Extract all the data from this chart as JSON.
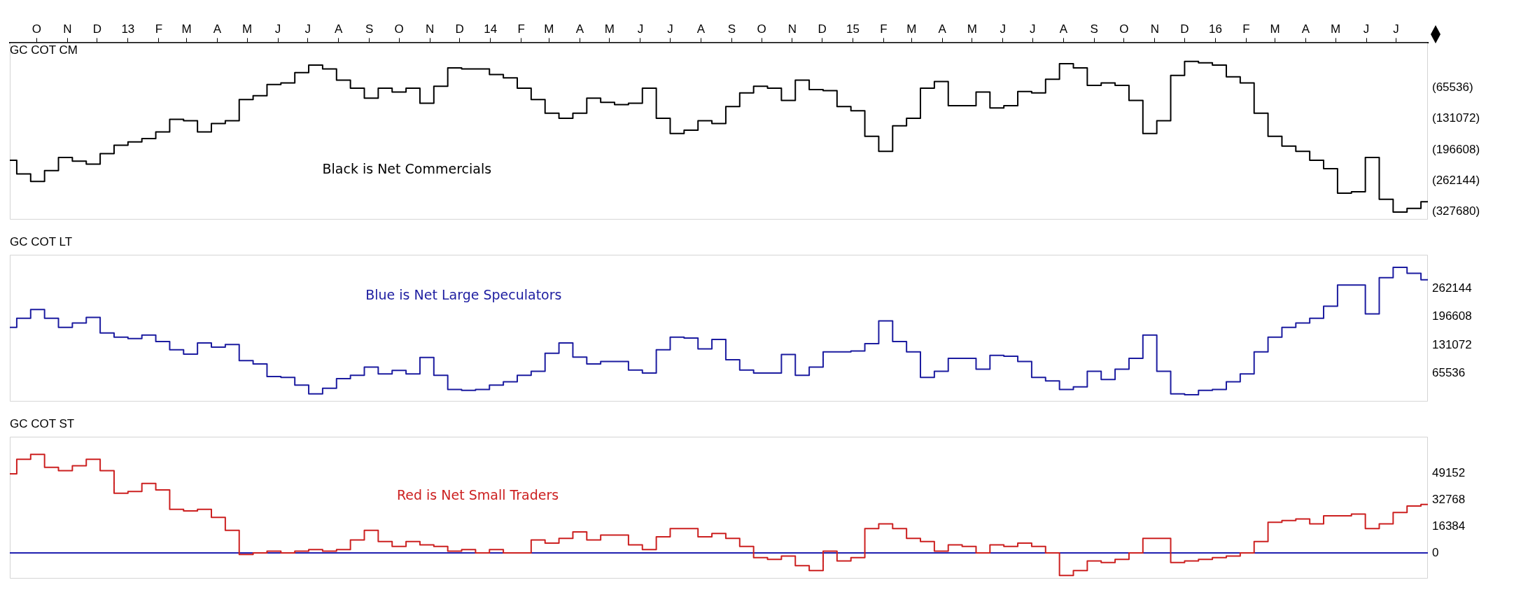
{
  "chart_data": [
    {
      "type": "step",
      "title": "GC COT CM",
      "x": [
        "2012-09-04",
        "2012-09-18",
        "2012-10-02",
        "2012-10-16",
        "2012-10-30",
        "2012-11-13",
        "2012-11-27",
        "2012-12-11",
        "2012-12-25",
        "2013-01-08",
        "2013-01-22",
        "2013-02-05",
        "2013-02-19",
        "2013-03-05",
        "2013-03-19",
        "2013-04-02",
        "2013-04-16",
        "2013-04-30",
        "2013-05-14",
        "2013-05-28",
        "2013-06-11",
        "2013-06-25",
        "2013-07-09",
        "2013-07-23",
        "2013-08-06",
        "2013-08-20",
        "2013-09-03",
        "2013-09-17",
        "2013-10-01",
        "2013-10-15",
        "2013-10-29",
        "2013-11-12",
        "2013-11-26",
        "2013-12-10",
        "2013-12-24",
        "2014-01-07",
        "2014-01-21",
        "2014-02-04",
        "2014-02-18",
        "2014-03-04",
        "2014-03-18",
        "2014-04-01",
        "2014-04-15",
        "2014-04-29",
        "2014-05-13",
        "2014-05-27",
        "2014-06-10",
        "2014-06-24",
        "2014-07-08",
        "2014-07-22",
        "2014-08-05",
        "2014-08-19",
        "2014-09-02",
        "2014-09-16",
        "2014-09-30",
        "2014-10-14",
        "2014-10-28",
        "2014-11-11",
        "2014-11-25",
        "2014-12-09",
        "2014-12-23",
        "2015-01-06",
        "2015-01-20",
        "2015-02-03",
        "2015-02-17",
        "2015-03-03",
        "2015-03-17",
        "2015-03-31",
        "2015-04-14",
        "2015-04-28",
        "2015-05-12",
        "2015-05-26",
        "2015-06-09",
        "2015-06-23",
        "2015-07-07",
        "2015-07-21",
        "2015-08-04",
        "2015-08-18",
        "2015-09-01",
        "2015-09-15",
        "2015-09-29",
        "2015-10-13",
        "2015-10-27",
        "2015-11-10",
        "2015-11-24",
        "2015-12-08",
        "2015-12-22",
        "2016-01-05",
        "2016-01-19",
        "2016-02-02",
        "2016-02-16",
        "2016-03-01",
        "2016-03-15",
        "2016-03-29",
        "2016-04-12",
        "2016-04-26",
        "2016-05-10",
        "2016-05-24",
        "2016-06-07",
        "2016-06-21",
        "2016-07-05",
        "2016-07-19",
        "2016-08-02"
      ],
      "series": [
        {
          "color": "#000000",
          "values": [
            -219000,
            -248000,
            -264000,
            -241000,
            -213000,
            -221000,
            -227000,
            -205000,
            -187000,
            -180000,
            -173000,
            -159000,
            -132000,
            -135000,
            -159000,
            -141000,
            -135000,
            -90000,
            -82000,
            -58000,
            -55000,
            -33000,
            -17000,
            -25000,
            -49000,
            -66000,
            -87000,
            -66000,
            -74000,
            -66000,
            -98000,
            -62000,
            -23000,
            -25000,
            -25000,
            -37000,
            -44000,
            -66000,
            -90000,
            -119000,
            -130000,
            -119000,
            -87000,
            -96000,
            -101000,
            -98000,
            -66000,
            -130000,
            -162000,
            -155000,
            -135000,
            -141000,
            -105000,
            -76000,
            -62000,
            -66000,
            -92000,
            -49000,
            -69000,
            -71000,
            -105000,
            -114000,
            -168000,
            -200000,
            -146000,
            -130000,
            -66000,
            -52000,
            -103000,
            -103000,
            -74000,
            -108000,
            -103000,
            -73000,
            -76000,
            -47000,
            -14000,
            -23000,
            -60000,
            -55000,
            -60000,
            -92000,
            -162000,
            -135000,
            -39000,
            -9000,
            -12000,
            -17000,
            -42000,
            -55000,
            -119000,
            -168000,
            -189000,
            -200000,
            -219000,
            -237000,
            -289000,
            -286000,
            -213000,
            -302000,
            -329000,
            -321000,
            -307000
          ]
        }
      ],
      "xlim": [
        "2012-09-04",
        "2016-08-02"
      ],
      "xticks": [
        {
          "value": "2012-10-01",
          "label": "O"
        },
        {
          "value": "2012-11-01",
          "label": "N"
        },
        {
          "value": "2012-12-01",
          "label": "D"
        },
        {
          "value": "2013-01-01",
          "label": "13"
        },
        {
          "value": "2013-02-01",
          "label": "F"
        },
        {
          "value": "2013-03-01",
          "label": "M"
        },
        {
          "value": "2013-04-01",
          "label": "A"
        },
        {
          "value": "2013-05-01",
          "label": "M"
        },
        {
          "value": "2013-06-01",
          "label": "J"
        },
        {
          "value": "2013-07-01",
          "label": "J"
        },
        {
          "value": "2013-08-01",
          "label": "A"
        },
        {
          "value": "2013-09-01",
          "label": "S"
        },
        {
          "value": "2013-10-01",
          "label": "O"
        },
        {
          "value": "2013-11-01",
          "label": "N"
        },
        {
          "value": "2013-12-01",
          "label": "D"
        },
        {
          "value": "2014-01-01",
          "label": "14"
        },
        {
          "value": "2014-02-01",
          "label": "F"
        },
        {
          "value": "2014-03-01",
          "label": "M"
        },
        {
          "value": "2014-04-01",
          "label": "A"
        },
        {
          "value": "2014-05-01",
          "label": "M"
        },
        {
          "value": "2014-06-01",
          "label": "J"
        },
        {
          "value": "2014-07-01",
          "label": "J"
        },
        {
          "value": "2014-08-01",
          "label": "A"
        },
        {
          "value": "2014-09-01",
          "label": "S"
        },
        {
          "value": "2014-10-01",
          "label": "O"
        },
        {
          "value": "2014-11-01",
          "label": "N"
        },
        {
          "value": "2014-12-01",
          "label": "D"
        },
        {
          "value": "2015-01-01",
          "label": "15"
        },
        {
          "value": "2015-02-01",
          "label": "F"
        },
        {
          "value": "2015-03-01",
          "label": "M"
        },
        {
          "value": "2015-04-01",
          "label": "A"
        },
        {
          "value": "2015-05-01",
          "label": "M"
        },
        {
          "value": "2015-06-01",
          "label": "J"
        },
        {
          "value": "2015-07-01",
          "label": "J"
        },
        {
          "value": "2015-08-01",
          "label": "A"
        },
        {
          "value": "2015-09-01",
          "label": "S"
        },
        {
          "value": "2015-10-01",
          "label": "O"
        },
        {
          "value": "2015-11-01",
          "label": "N"
        },
        {
          "value": "2015-12-01",
          "label": "D"
        },
        {
          "value": "2016-01-01",
          "label": "16"
        },
        {
          "value": "2016-02-01",
          "label": "F"
        },
        {
          "value": "2016-03-01",
          "label": "M"
        },
        {
          "value": "2016-04-01",
          "label": "A"
        },
        {
          "value": "2016-05-01",
          "label": "M"
        },
        {
          "value": "2016-06-01",
          "label": "J"
        },
        {
          "value": "2016-07-01",
          "label": "J"
        }
      ],
      "ylim": [
        -345000,
        30000
      ],
      "yticks": [
        {
          "value": -65536,
          "label": "(65536)"
        },
        {
          "value": -131072,
          "label": "(131072)"
        },
        {
          "value": -196608,
          "label": "(196608)"
        },
        {
          "value": -262144,
          "label": "(262144)"
        },
        {
          "value": -327680,
          "label": "(327680)"
        }
      ],
      "annotations": [
        "Black is Net Commercials"
      ]
    },
    {
      "type": "step",
      "title": "GC COT LT",
      "tick_labels": "y",
      "x": [
        "2012-09-04",
        "2012-09-18",
        "2012-10-02",
        "2012-10-16",
        "2012-10-30",
        "2012-11-13",
        "2012-11-27",
        "2012-12-11",
        "2012-12-25",
        "2013-01-08",
        "2013-01-22",
        "2013-02-05",
        "2013-02-19",
        "2013-03-05",
        "2013-03-19",
        "2013-04-02",
        "2013-04-16",
        "2013-04-30",
        "2013-05-14",
        "2013-05-28",
        "2013-06-11",
        "2013-06-25",
        "2013-07-09",
        "2013-07-23",
        "2013-08-06",
        "2013-08-20",
        "2013-09-03",
        "2013-09-17",
        "2013-10-01",
        "2013-10-15",
        "2013-10-29",
        "2013-11-12",
        "2013-11-26",
        "2013-12-10",
        "2013-12-24",
        "2014-01-07",
        "2014-01-21",
        "2014-02-04",
        "2014-02-18",
        "2014-03-04",
        "2014-03-18",
        "2014-04-01",
        "2014-04-15",
        "2014-04-29",
        "2014-05-13",
        "2014-05-27",
        "2014-06-10",
        "2014-06-24",
        "2014-07-08",
        "2014-07-22",
        "2014-08-05",
        "2014-08-19",
        "2014-09-02",
        "2014-09-16",
        "2014-09-30",
        "2014-10-14",
        "2014-10-28",
        "2014-11-11",
        "2014-11-25",
        "2014-12-09",
        "2014-12-23",
        "2015-01-06",
        "2015-01-20",
        "2015-02-03",
        "2015-02-17",
        "2015-03-03",
        "2015-03-17",
        "2015-03-31",
        "2015-04-14",
        "2015-04-28",
        "2015-05-12",
        "2015-05-26",
        "2015-06-09",
        "2015-06-23",
        "2015-07-07",
        "2015-07-21",
        "2015-08-04",
        "2015-08-18",
        "2015-09-01",
        "2015-09-15",
        "2015-09-29",
        "2015-10-13",
        "2015-10-27",
        "2015-11-10",
        "2015-11-24",
        "2015-12-08",
        "2015-12-22",
        "2016-01-05",
        "2016-01-19",
        "2016-02-02",
        "2016-02-16",
        "2016-03-01",
        "2016-03-15",
        "2016-03-29",
        "2016-04-12",
        "2016-04-26",
        "2016-05-10",
        "2016-05-24",
        "2016-06-07",
        "2016-06-21",
        "2016-07-05",
        "2016-07-19",
        "2016-08-02"
      ],
      "series": [
        {
          "color": "#1c1ca0",
          "values": [
            172000,
            193000,
            213000,
            193000,
            172000,
            182000,
            195000,
            159000,
            149000,
            146000,
            154000,
            139000,
            120000,
            110000,
            136000,
            126000,
            132000,
            95000,
            87000,
            58000,
            56000,
            38000,
            18000,
            31000,
            53000,
            61000,
            80000,
            64000,
            72000,
            64000,
            102000,
            61000,
            28000,
            26000,
            28000,
            38000,
            46000,
            61000,
            70000,
            112000,
            136000,
            103000,
            87000,
            93000,
            93000,
            73000,
            66000,
            120000,
            149000,
            147000,
            122000,
            144000,
            97000,
            73000,
            66000,
            66000,
            109000,
            61000,
            80000,
            115000,
            115000,
            117000,
            134000,
            187000,
            139000,
            115000,
            56000,
            70000,
            100000,
            100000,
            75000,
            107000,
            105000,
            93000,
            56000,
            48000,
            28000,
            34000,
            70000,
            51000,
            75000,
            100000,
            154000,
            70000,
            18000,
            16000,
            26000,
            28000,
            46000,
            64000,
            115000,
            149000,
            172000,
            182000,
            193000,
            221000,
            270000,
            270000,
            203000,
            287000,
            311000,
            297000,
            282000
          ]
        }
      ],
      "xlim": [
        "2012-09-04",
        "2016-08-02"
      ],
      "ylim": [
        0,
        340000
      ],
      "yticks": [
        65536,
        131072,
        196608,
        262144
      ],
      "annotations": [
        "Blue is Net Large Speculators"
      ]
    },
    {
      "type": "step",
      "title": "GC COT ST",
      "tick_labels": "y",
      "x": [
        "2012-09-04",
        "2012-09-18",
        "2012-10-02",
        "2012-10-16",
        "2012-10-30",
        "2012-11-13",
        "2012-11-27",
        "2012-12-11",
        "2012-12-25",
        "2013-01-08",
        "2013-01-22",
        "2013-02-05",
        "2013-02-19",
        "2013-03-05",
        "2013-03-19",
        "2013-04-02",
        "2013-04-16",
        "2013-04-30",
        "2013-05-14",
        "2013-05-28",
        "2013-06-11",
        "2013-06-25",
        "2013-07-09",
        "2013-07-23",
        "2013-08-06",
        "2013-08-20",
        "2013-09-03",
        "2013-09-17",
        "2013-10-01",
        "2013-10-15",
        "2013-10-29",
        "2013-11-12",
        "2013-11-26",
        "2013-12-10",
        "2013-12-24",
        "2014-01-07",
        "2014-01-21",
        "2014-02-04",
        "2014-02-18",
        "2014-03-04",
        "2014-03-18",
        "2014-04-01",
        "2014-04-15",
        "2014-04-29",
        "2014-05-13",
        "2014-05-27",
        "2014-06-10",
        "2014-06-24",
        "2014-07-08",
        "2014-07-22",
        "2014-08-05",
        "2014-08-19",
        "2014-09-02",
        "2014-09-16",
        "2014-09-30",
        "2014-10-14",
        "2014-10-28",
        "2014-11-11",
        "2014-11-25",
        "2014-12-09",
        "2014-12-23",
        "2015-01-06",
        "2015-01-20",
        "2015-02-03",
        "2015-02-17",
        "2015-03-03",
        "2015-03-17",
        "2015-03-31",
        "2015-04-14",
        "2015-04-28",
        "2015-05-12",
        "2015-05-26",
        "2015-06-09",
        "2015-06-23",
        "2015-07-07",
        "2015-07-21",
        "2015-08-04",
        "2015-08-18",
        "2015-09-01",
        "2015-09-15",
        "2015-09-29",
        "2015-10-13",
        "2015-10-27",
        "2015-11-10",
        "2015-11-24",
        "2015-12-08",
        "2015-12-22",
        "2016-01-05",
        "2016-01-19",
        "2016-02-02",
        "2016-02-16",
        "2016-03-01",
        "2016-03-15",
        "2016-03-29",
        "2016-04-12",
        "2016-04-26",
        "2016-05-10",
        "2016-05-24",
        "2016-06-07",
        "2016-06-21",
        "2016-07-05",
        "2016-07-19",
        "2016-08-02"
      ],
      "series": [
        {
          "color": "#cc2020",
          "values": [
            49000,
            58000,
            61000,
            53000,
            51000,
            54000,
            58000,
            51000,
            37000,
            38000,
            43000,
            39000,
            27000,
            26000,
            27000,
            22000,
            14000,
            -1000,
            0,
            1000,
            0,
            1000,
            2000,
            1000,
            2000,
            8000,
            14000,
            7000,
            4000,
            7000,
            5000,
            4000,
            1000,
            2000,
            0,
            2000,
            0,
            0,
            8000,
            6000,
            9000,
            13000,
            8000,
            11000,
            11000,
            5000,
            2000,
            10000,
            15000,
            15000,
            10000,
            12000,
            9000,
            4000,
            -3000,
            -4000,
            -2000,
            -8000,
            -11000,
            1000,
            -5000,
            -3000,
            15000,
            18000,
            15000,
            9000,
            7000,
            1000,
            5000,
            4000,
            0,
            5000,
            4000,
            6000,
            4000,
            0,
            -14000,
            -11000,
            -5000,
            -6000,
            -4000,
            0,
            9000,
            9000,
            -6000,
            -5000,
            -4000,
            -3000,
            -2000,
            0,
            7000,
            19000,
            20000,
            21000,
            18000,
            23000,
            23000,
            24000,
            15000,
            18000,
            25000,
            29000,
            30000
          ]
        }
      ],
      "xlim": [
        "2012-09-04",
        "2016-08-02"
      ],
      "ylim": [
        -16000,
        72000
      ],
      "yticks": [
        0,
        16384,
        32768,
        49152
      ],
      "ref_lines": [
        {
          "axis": "y",
          "value": 0,
          "color": "#2020b0"
        }
      ],
      "annotations": [
        "Red is Net Small Traders"
      ]
    }
  ]
}
